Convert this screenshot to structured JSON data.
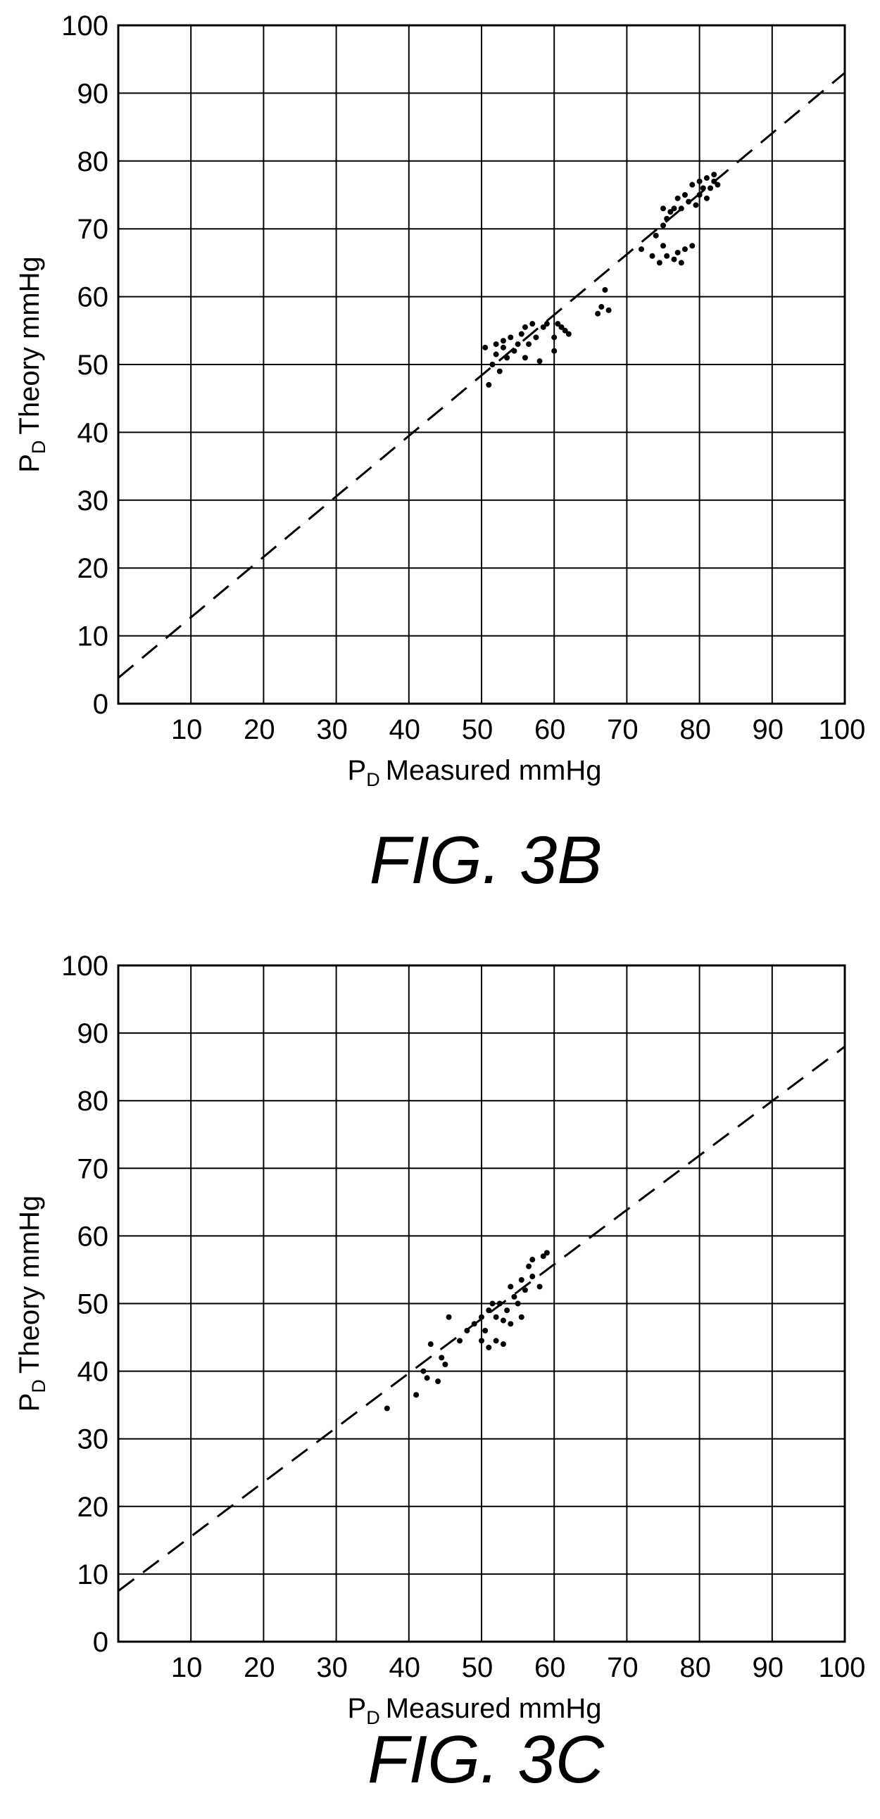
{
  "chart_data": [
    {
      "type": "scatter",
      "caption": "FIG. 3B",
      "xlabel": "Measured mmHg",
      "ylabel": "Theory mmHg",
      "axis_symbol": "P",
      "axis_symbol_subscript": "D",
      "xlim": [
        0,
        100
      ],
      "ylim": [
        0,
        100
      ],
      "x_ticks": [
        "10",
        "20",
        "30",
        "40",
        "50",
        "60",
        "70",
        "80",
        "90",
        "100"
      ],
      "y_ticks": [
        "0",
        "10",
        "20",
        "30",
        "40",
        "50",
        "60",
        "70",
        "80",
        "90",
        "100"
      ],
      "grid": true,
      "fit_line": {
        "style": "dashed",
        "x": [
          0,
          100
        ],
        "y": [
          3.8,
          93
        ]
      },
      "series": [
        {
          "points": [
            [
              50.5,
              52.5
            ],
            [
              51,
              47
            ],
            [
              51.5,
              50
            ],
            [
              52,
              51.5
            ],
            [
              52,
              53
            ],
            [
              52.5,
              49
            ],
            [
              53,
              52.5
            ],
            [
              53,
              53.5
            ],
            [
              53.5,
              51
            ],
            [
              54,
              54
            ],
            [
              54.5,
              52
            ],
            [
              55,
              53
            ],
            [
              55.5,
              54.5
            ],
            [
              56,
              51
            ],
            [
              56,
              55.5
            ],
            [
              56.5,
              53
            ],
            [
              57,
              56
            ],
            [
              57.5,
              54
            ],
            [
              58,
              50.5
            ],
            [
              58.5,
              55.5
            ],
            [
              59,
              56
            ],
            [
              60,
              52
            ],
            [
              60,
              54
            ],
            [
              60.5,
              56
            ],
            [
              61,
              55.5
            ],
            [
              61.5,
              55
            ],
            [
              62,
              54.5
            ],
            [
              66,
              57.5
            ],
            [
              66.5,
              58.5
            ],
            [
              67,
              61
            ],
            [
              67.5,
              58
            ],
            [
              72,
              67
            ],
            [
              73.5,
              66
            ],
            [
              74,
              69
            ],
            [
              74.5,
              65
            ],
            [
              75,
              67.5
            ],
            [
              75,
              70.5
            ],
            [
              75,
              73
            ],
            [
              75.5,
              66
            ],
            [
              75.5,
              71.5
            ],
            [
              76,
              72.5
            ],
            [
              76.5,
              65.5
            ],
            [
              76.5,
              73
            ],
            [
              77,
              66.5
            ],
            [
              77,
              74.5
            ],
            [
              77.5,
              65
            ],
            [
              77.5,
              73
            ],
            [
              78,
              67
            ],
            [
              78,
              75
            ],
            [
              78.5,
              74
            ],
            [
              79,
              76.5
            ],
            [
              79,
              67.5
            ],
            [
              79.5,
              73.5
            ],
            [
              80,
              75
            ],
            [
              80,
              77
            ],
            [
              80.5,
              76
            ],
            [
              81,
              74.5
            ],
            [
              81,
              77.5
            ],
            [
              81.5,
              76
            ],
            [
              82,
              78
            ],
            [
              82,
              77
            ],
            [
              82.5,
              76.5
            ]
          ]
        }
      ]
    },
    {
      "type": "scatter",
      "caption": "FIG. 3C",
      "xlabel": "Measured mmHg",
      "ylabel": "Theory mmHg",
      "axis_symbol": "P",
      "axis_symbol_subscript": "D",
      "xlim": [
        0,
        100
      ],
      "ylim": [
        0,
        100
      ],
      "x_ticks": [
        "10",
        "20",
        "30",
        "40",
        "50",
        "60",
        "70",
        "80",
        "90",
        "100"
      ],
      "y_ticks": [
        "0",
        "10",
        "20",
        "30",
        "40",
        "50",
        "60",
        "70",
        "80",
        "90",
        "100"
      ],
      "grid": true,
      "fit_line": {
        "style": "dashed",
        "x": [
          0,
          100
        ],
        "y": [
          7.5,
          88
        ]
      },
      "series": [
        {
          "points": [
            [
              37,
              34.5
            ],
            [
              41,
              36.5
            ],
            [
              42,
              40
            ],
            [
              42.5,
              39
            ],
            [
              43,
              44
            ],
            [
              44,
              38.5
            ],
            [
              44.5,
              42
            ],
            [
              45,
              41
            ],
            [
              45.5,
              48
            ],
            [
              47,
              44.5
            ],
            [
              48,
              46
            ],
            [
              49,
              47
            ],
            [
              50,
              44.5
            ],
            [
              50,
              48
            ],
            [
              50.5,
              46
            ],
            [
              51,
              49
            ],
            [
              51,
              43.5
            ],
            [
              51.5,
              50
            ],
            [
              52,
              44.5
            ],
            [
              52,
              48
            ],
            [
              52.5,
              50
            ],
            [
              53,
              44
            ],
            [
              53,
              47.5
            ],
            [
              53.5,
              49
            ],
            [
              54,
              52.5
            ],
            [
              54,
              47
            ],
            [
              54.5,
              51
            ],
            [
              55,
              50
            ],
            [
              55.5,
              53.5
            ],
            [
              55.5,
              48
            ],
            [
              56,
              52
            ],
            [
              56.5,
              55.5
            ],
            [
              57,
              56.5
            ],
            [
              57,
              54
            ],
            [
              58,
              52.5
            ],
            [
              58.5,
              57
            ],
            [
              59,
              57.5
            ]
          ]
        }
      ]
    }
  ]
}
